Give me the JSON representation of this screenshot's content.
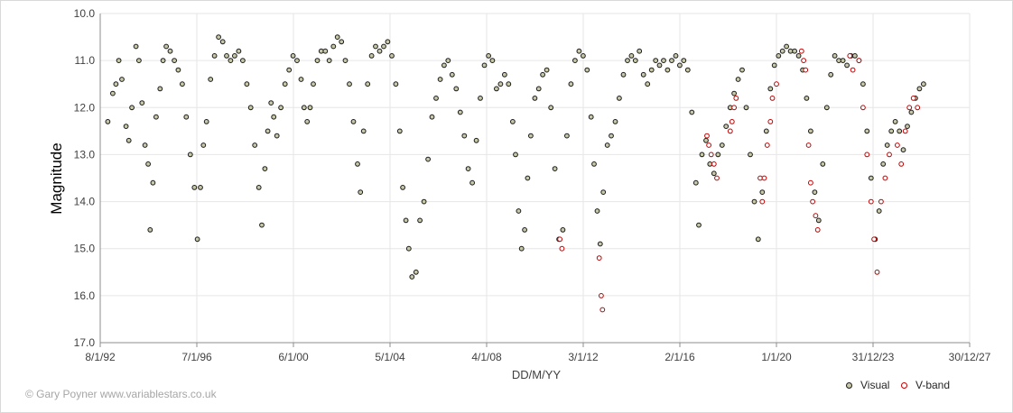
{
  "chart_data": {
    "type": "scatter",
    "xlabel": "DD/M/YY",
    "ylabel": "Magnitude",
    "x_tick_labels": [
      "8/1/92",
      "7/1/96",
      "6/1/00",
      "5/1/04",
      "4/1/08",
      "3/1/12",
      "2/1/16",
      "1/1/20",
      "31/12/23",
      "30/12/27"
    ],
    "x_ticks": [
      "1992-01-08",
      "1996-01-07",
      "2000-01-06",
      "2004-01-05",
      "2008-01-04",
      "2012-01-03",
      "2016-01-02",
      "2020-01-01",
      "2023-12-31",
      "2027-12-30"
    ],
    "xlim": [
      "1992-01-08",
      "2027-12-30"
    ],
    "ylim": [
      17.0,
      10.0
    ],
    "y_inverted": true,
    "y_tick_labels": [
      "10.0",
      "11.0",
      "12.0",
      "13.0",
      "14.0",
      "15.0",
      "16.0",
      "17.0"
    ],
    "y_ticks": [
      10,
      11,
      12,
      13,
      14,
      15,
      16,
      17
    ],
    "grid": true,
    "legend_position": "bottom-right",
    "series": [
      {
        "name": "Visual",
        "marker": "open-circle",
        "color": "#1a1a1a",
        "fill": "#c8c8a9",
        "points": [
          [
            "1992-05-01",
            12.3
          ],
          [
            "1992-07-15",
            11.7
          ],
          [
            "1992-09-01",
            11.5
          ],
          [
            "1992-10-15",
            11.0
          ],
          [
            "1992-12-01",
            11.4
          ],
          [
            "1993-02-01",
            12.4
          ],
          [
            "1993-03-15",
            12.7
          ],
          [
            "1993-05-01",
            12.0
          ],
          [
            "1993-07-01",
            10.7
          ],
          [
            "1993-08-15",
            11.0
          ],
          [
            "1993-10-01",
            11.9
          ],
          [
            "1993-11-15",
            12.8
          ],
          [
            "1994-01-01",
            13.2
          ],
          [
            "1994-02-01",
            14.6
          ],
          [
            "1994-03-15",
            13.6
          ],
          [
            "1994-05-01",
            12.2
          ],
          [
            "1994-07-01",
            11.6
          ],
          [
            "1994-08-15",
            11.0
          ],
          [
            "1994-10-01",
            10.7
          ],
          [
            "1994-12-01",
            10.8
          ],
          [
            "1995-02-01",
            11.0
          ],
          [
            "1995-04-01",
            11.2
          ],
          [
            "1995-06-01",
            11.5
          ],
          [
            "1995-08-01",
            12.2
          ],
          [
            "1995-10-01",
            13.0
          ],
          [
            "1995-12-01",
            13.7
          ],
          [
            "1996-01-15",
            14.8
          ],
          [
            "1996-03-01",
            13.7
          ],
          [
            "1996-04-15",
            12.8
          ],
          [
            "1996-06-01",
            12.3
          ],
          [
            "1996-08-01",
            11.4
          ],
          [
            "1996-10-01",
            10.9
          ],
          [
            "1996-12-01",
            10.5
          ],
          [
            "1997-02-01",
            10.6
          ],
          [
            "1997-04-01",
            10.9
          ],
          [
            "1997-06-01",
            11.0
          ],
          [
            "1997-08-01",
            10.9
          ],
          [
            "1997-10-01",
            10.8
          ],
          [
            "1997-12-01",
            11.0
          ],
          [
            "1998-02-01",
            11.5
          ],
          [
            "1998-04-01",
            12.0
          ],
          [
            "1998-06-01",
            12.8
          ],
          [
            "1998-08-01",
            13.7
          ],
          [
            "1998-09-15",
            14.5
          ],
          [
            "1998-11-01",
            13.3
          ],
          [
            "1998-12-15",
            12.5
          ],
          [
            "1999-02-01",
            11.9
          ],
          [
            "1999-03-15",
            12.2
          ],
          [
            "1999-05-01",
            12.6
          ],
          [
            "1999-07-01",
            12.0
          ],
          [
            "1999-09-01",
            11.5
          ],
          [
            "1999-11-01",
            11.2
          ],
          [
            "2000-01-01",
            10.9
          ],
          [
            "2000-03-01",
            11.0
          ],
          [
            "2000-05-01",
            11.4
          ],
          [
            "2000-06-15",
            12.0
          ],
          [
            "2000-08-01",
            12.3
          ],
          [
            "2000-09-15",
            12.0
          ],
          [
            "2000-11-01",
            11.5
          ],
          [
            "2001-01-01",
            11.0
          ],
          [
            "2001-03-01",
            10.8
          ],
          [
            "2001-05-01",
            10.8
          ],
          [
            "2001-07-01",
            11.0
          ],
          [
            "2001-09-01",
            10.7
          ],
          [
            "2001-11-01",
            10.5
          ],
          [
            "2002-01-01",
            10.6
          ],
          [
            "2002-03-01",
            11.0
          ],
          [
            "2002-05-01",
            11.5
          ],
          [
            "2002-07-01",
            12.3
          ],
          [
            "2002-09-01",
            13.2
          ],
          [
            "2002-10-15",
            13.8
          ],
          [
            "2002-12-01",
            12.5
          ],
          [
            "2003-02-01",
            11.5
          ],
          [
            "2003-04-01",
            10.9
          ],
          [
            "2003-06-01",
            10.7
          ],
          [
            "2003-08-01",
            10.8
          ],
          [
            "2003-10-01",
            10.7
          ],
          [
            "2003-12-01",
            10.6
          ],
          [
            "2004-02-01",
            10.9
          ],
          [
            "2004-04-01",
            11.5
          ],
          [
            "2004-06-01",
            12.5
          ],
          [
            "2004-07-15",
            13.7
          ],
          [
            "2004-09-01",
            14.4
          ],
          [
            "2004-10-15",
            15.0
          ],
          [
            "2004-12-01",
            15.6
          ],
          [
            "2005-02-01",
            15.5
          ],
          [
            "2005-04-01",
            14.4
          ],
          [
            "2005-06-01",
            14.0
          ],
          [
            "2005-08-01",
            13.1
          ],
          [
            "2005-10-01",
            12.2
          ],
          [
            "2005-12-01",
            11.8
          ],
          [
            "2006-02-01",
            11.4
          ],
          [
            "2006-04-01",
            11.1
          ],
          [
            "2006-06-01",
            11.0
          ],
          [
            "2006-08-01",
            11.3
          ],
          [
            "2006-10-01",
            11.6
          ],
          [
            "2006-12-01",
            12.1
          ],
          [
            "2007-02-01",
            12.6
          ],
          [
            "2007-04-01",
            13.3
          ],
          [
            "2007-06-01",
            13.6
          ],
          [
            "2007-08-01",
            12.7
          ],
          [
            "2007-10-01",
            11.8
          ],
          [
            "2007-12-01",
            11.1
          ],
          [
            "2008-02-01",
            10.9
          ],
          [
            "2008-04-01",
            11.0
          ],
          [
            "2008-06-01",
            11.6
          ],
          [
            "2008-08-01",
            11.5
          ],
          [
            "2008-10-01",
            11.3
          ],
          [
            "2008-12-01",
            11.5
          ],
          [
            "2009-02-01",
            12.3
          ],
          [
            "2009-03-15",
            13.0
          ],
          [
            "2009-05-01",
            14.2
          ],
          [
            "2009-06-15",
            15.0
          ],
          [
            "2009-08-01",
            14.6
          ],
          [
            "2009-09-15",
            13.5
          ],
          [
            "2009-11-01",
            12.6
          ],
          [
            "2010-01-01",
            11.8
          ],
          [
            "2010-03-01",
            11.6
          ],
          [
            "2010-05-01",
            11.3
          ],
          [
            "2010-07-01",
            11.2
          ],
          [
            "2010-09-01",
            12.0
          ],
          [
            "2010-11-01",
            13.3
          ],
          [
            "2011-01-01",
            14.8
          ],
          [
            "2011-03-01",
            14.6
          ],
          [
            "2011-05-01",
            12.6
          ],
          [
            "2011-07-01",
            11.5
          ],
          [
            "2011-09-01",
            11.0
          ],
          [
            "2011-11-01",
            10.8
          ],
          [
            "2012-01-01",
            10.9
          ],
          [
            "2012-03-01",
            11.2
          ],
          [
            "2012-05-01",
            12.2
          ],
          [
            "2012-06-15",
            13.2
          ],
          [
            "2012-08-01",
            14.2
          ],
          [
            "2012-09-15",
            14.9
          ],
          [
            "2012-11-01",
            13.8
          ],
          [
            "2013-01-01",
            12.8
          ],
          [
            "2013-03-01",
            12.6
          ],
          [
            "2013-05-01",
            12.3
          ],
          [
            "2013-07-01",
            11.8
          ],
          [
            "2013-09-01",
            11.3
          ],
          [
            "2013-11-01",
            11.0
          ],
          [
            "2014-01-01",
            10.9
          ],
          [
            "2014-03-01",
            11.0
          ],
          [
            "2014-05-01",
            10.8
          ],
          [
            "2014-07-01",
            11.3
          ],
          [
            "2014-09-01",
            11.5
          ],
          [
            "2014-11-01",
            11.2
          ],
          [
            "2015-01-01",
            11.0
          ],
          [
            "2015-03-01",
            11.1
          ],
          [
            "2015-05-01",
            11.0
          ],
          [
            "2015-07-01",
            11.2
          ],
          [
            "2015-09-01",
            11.0
          ],
          [
            "2015-11-01",
            10.9
          ],
          [
            "2016-01-01",
            11.1
          ],
          [
            "2016-03-01",
            11.0
          ],
          [
            "2016-05-01",
            11.2
          ],
          [
            "2016-07-01",
            12.1
          ],
          [
            "2016-09-01",
            13.6
          ],
          [
            "2016-10-15",
            14.5
          ],
          [
            "2016-12-01",
            13.0
          ],
          [
            "2017-02-01",
            12.7
          ],
          [
            "2017-04-01",
            13.2
          ],
          [
            "2017-06-01",
            13.4
          ],
          [
            "2017-08-01",
            13.0
          ],
          [
            "2017-10-01",
            12.8
          ],
          [
            "2017-12-01",
            12.4
          ],
          [
            "2018-02-01",
            12.0
          ],
          [
            "2018-04-01",
            11.7
          ],
          [
            "2018-06-01",
            11.4
          ],
          [
            "2018-08-01",
            11.2
          ],
          [
            "2018-10-01",
            12.0
          ],
          [
            "2018-12-01",
            13.0
          ],
          [
            "2019-02-01",
            14.0
          ],
          [
            "2019-04-01",
            14.8
          ],
          [
            "2019-06-01",
            13.8
          ],
          [
            "2019-08-01",
            12.5
          ],
          [
            "2019-10-01",
            11.6
          ],
          [
            "2019-12-01",
            11.1
          ],
          [
            "2020-02-01",
            10.9
          ],
          [
            "2020-04-01",
            10.8
          ],
          [
            "2020-06-01",
            10.7
          ],
          [
            "2020-08-01",
            10.8
          ],
          [
            "2020-10-01",
            10.8
          ],
          [
            "2020-12-01",
            10.9
          ],
          [
            "2021-02-01",
            11.2
          ],
          [
            "2021-04-01",
            11.8
          ],
          [
            "2021-06-01",
            12.5
          ],
          [
            "2021-08-01",
            13.8
          ],
          [
            "2021-10-01",
            14.4
          ],
          [
            "2021-12-01",
            13.2
          ],
          [
            "2022-02-01",
            12.0
          ],
          [
            "2022-04-01",
            11.3
          ],
          [
            "2022-06-01",
            10.9
          ],
          [
            "2022-08-01",
            11.0
          ],
          [
            "2022-10-01",
            11.0
          ],
          [
            "2022-12-01",
            11.1
          ],
          [
            "2023-02-01",
            10.9
          ],
          [
            "2023-04-01",
            10.9
          ],
          [
            "2023-06-01",
            11.0
          ],
          [
            "2023-08-01",
            11.5
          ],
          [
            "2023-10-01",
            12.5
          ],
          [
            "2023-12-01",
            13.5
          ],
          [
            "2024-02-01",
            14.8
          ],
          [
            "2024-04-01",
            14.2
          ],
          [
            "2024-06-01",
            13.2
          ],
          [
            "2024-08-01",
            12.8
          ],
          [
            "2024-10-01",
            12.5
          ],
          [
            "2024-12-01",
            12.3
          ],
          [
            "2025-02-01",
            12.5
          ],
          [
            "2025-04-01",
            12.9
          ],
          [
            "2025-06-01",
            12.4
          ],
          [
            "2025-08-01",
            12.1
          ],
          [
            "2025-10-01",
            11.8
          ],
          [
            "2025-12-01",
            11.6
          ],
          [
            "2026-02-01",
            11.5
          ]
        ]
      },
      {
        "name": "V-band",
        "marker": "open-circle",
        "color": "#c00000",
        "fill": "#ffffff",
        "points": [
          [
            "2011-01-15",
            14.8
          ],
          [
            "2011-02-15",
            15.0
          ],
          [
            "2012-09-01",
            15.2
          ],
          [
            "2012-10-01",
            16.0
          ],
          [
            "2012-10-20",
            16.3
          ],
          [
            "2017-02-15",
            12.6
          ],
          [
            "2017-03-15",
            12.8
          ],
          [
            "2017-04-20",
            13.0
          ],
          [
            "2017-06-01",
            13.2
          ],
          [
            "2017-07-15",
            13.5
          ],
          [
            "2018-02-01",
            12.5
          ],
          [
            "2018-03-01",
            12.3
          ],
          [
            "2018-04-01",
            12.0
          ],
          [
            "2018-05-01",
            11.8
          ],
          [
            "2019-05-01",
            13.5
          ],
          [
            "2019-06-01",
            14.0
          ],
          [
            "2019-07-01",
            13.5
          ],
          [
            "2019-08-15",
            12.8
          ],
          [
            "2019-10-01",
            12.3
          ],
          [
            "2019-11-01",
            11.8
          ],
          [
            "2020-01-01",
            11.5
          ],
          [
            "2021-01-15",
            10.8
          ],
          [
            "2021-02-15",
            11.0
          ],
          [
            "2021-03-15",
            11.2
          ],
          [
            "2021-05-01",
            12.8
          ],
          [
            "2021-06-01",
            13.6
          ],
          [
            "2021-07-01",
            14.0
          ],
          [
            "2021-08-15",
            14.3
          ],
          [
            "2021-09-15",
            14.6
          ],
          [
            "2023-01-15",
            10.9
          ],
          [
            "2023-03-01",
            11.2
          ],
          [
            "2023-06-01",
            11.0
          ],
          [
            "2023-08-01",
            12.0
          ],
          [
            "2023-10-01",
            13.0
          ],
          [
            "2023-12-01",
            14.0
          ],
          [
            "2024-01-15",
            14.8
          ],
          [
            "2024-03-01",
            15.5
          ],
          [
            "2024-05-01",
            14.0
          ],
          [
            "2024-07-01",
            13.5
          ],
          [
            "2024-09-01",
            13.0
          ],
          [
            "2025-01-01",
            12.8
          ],
          [
            "2025-03-01",
            13.2
          ],
          [
            "2025-05-01",
            12.5
          ],
          [
            "2025-07-01",
            12.0
          ],
          [
            "2025-09-01",
            11.8
          ],
          [
            "2025-11-01",
            12.0
          ]
        ]
      }
    ]
  },
  "credit": "© Gary Poyner www.variablestars.co.uk"
}
